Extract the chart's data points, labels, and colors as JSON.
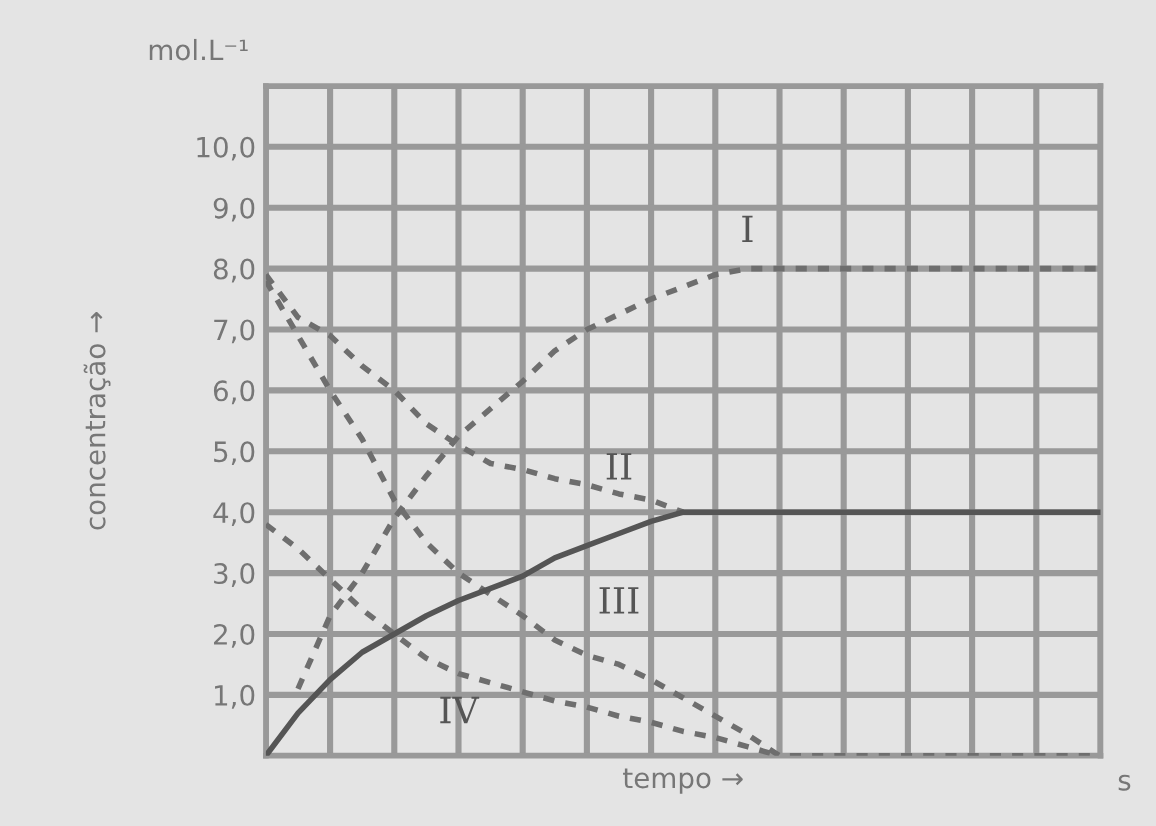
{
  "chart_data": {
    "type": "line",
    "ylabel": "concentração →",
    "xlabel": "tempo →",
    "annotations": [
      "mol.L⁻¹",
      "s"
    ],
    "categories": [
      null,
      null,
      null,
      null,
      null,
      null,
      null,
      null,
      null,
      null,
      null,
      null,
      null,
      null,
      null,
      null,
      null,
      null,
      null,
      null,
      null,
      null,
      null,
      null,
      null,
      null,
      null
    ],
    "series": [
      {
        "name": "I",
        "color": "#6e6e6e",
        "line_style": "dashed",
        "values": [
          null,
          1.1,
          2.3,
          3.0,
          3.9,
          4.6,
          5.25,
          5.7,
          6.15,
          6.65,
          7.0,
          7.25,
          7.5,
          7.7,
          7.9,
          8.0,
          8.0,
          8.0,
          8.0,
          8.0,
          8.0,
          8.0,
          8.0,
          8.0,
          8.0,
          8.0,
          8.0
        ]
      },
      {
        "name": "II",
        "color": "#6e6e6e",
        "line_style": "dashed",
        "values": [
          7.9,
          7.2,
          6.9,
          6.4,
          6.0,
          5.45,
          5.1,
          4.8,
          4.7,
          4.55,
          4.45,
          4.3,
          4.2,
          4.0,
          null,
          null,
          null,
          null,
          null,
          null,
          null,
          null,
          null,
          null,
          null,
          null,
          null
        ]
      },
      {
        "name": "III",
        "color": "#6e6e6e",
        "line_style": "dashed",
        "values": [
          7.8,
          6.9,
          6.0,
          5.2,
          4.2,
          3.5,
          3.0,
          2.65,
          2.3,
          1.9,
          1.65,
          1.5,
          1.25,
          0.95,
          0.65,
          0.35,
          0.0,
          0.0,
          0.0,
          0.0,
          0.0,
          0.0,
          0.0,
          0.0,
          0.0,
          0.0,
          0.0
        ]
      },
      {
        "name": "IV",
        "color": "#6e6e6e",
        "line_style": "dashed",
        "values": [
          3.8,
          3.4,
          2.9,
          2.4,
          2.0,
          1.6,
          1.35,
          1.2,
          1.05,
          0.9,
          0.8,
          0.65,
          0.55,
          0.4,
          0.3,
          0.15,
          0.0,
          null,
          null,
          null,
          null,
          null,
          null,
          null,
          null,
          null,
          null
        ]
      },
      {
        "color": "#555555",
        "line_style": "solid",
        "values": [
          0.0,
          0.7,
          1.25,
          1.7,
          2.0,
          2.3,
          2.55,
          2.75,
          2.95,
          3.25,
          3.45,
          3.65,
          3.85,
          4.0,
          4.0,
          4.0,
          4.0,
          4.0,
          4.0,
          4.0,
          4.0,
          4.0,
          4.0,
          4.0,
          4.0,
          4.0,
          4.0
        ]
      }
    ],
    "ylim": [
      0,
      11
    ],
    "yticks": [
      {
        "value": 0,
        "label": null
      },
      {
        "value": 1,
        "label": "1,0"
      },
      {
        "value": 2,
        "label": "2,0"
      },
      {
        "value": 3,
        "label": "3,0"
      },
      {
        "value": 4,
        "label": "4,0"
      },
      {
        "value": 5,
        "label": "5,0"
      },
      {
        "value": 6,
        "label": "6,0"
      },
      {
        "value": 7,
        "label": "7,0"
      },
      {
        "value": 8,
        "label": "8,0"
      },
      {
        "value": 9,
        "label": "9,0"
      },
      {
        "value": 10,
        "label": "10,0"
      },
      {
        "value": 11,
        "label": null
      }
    ],
    "tick_labels": "y",
    "grid": true,
    "legend": false,
    "marker": "none"
  }
}
